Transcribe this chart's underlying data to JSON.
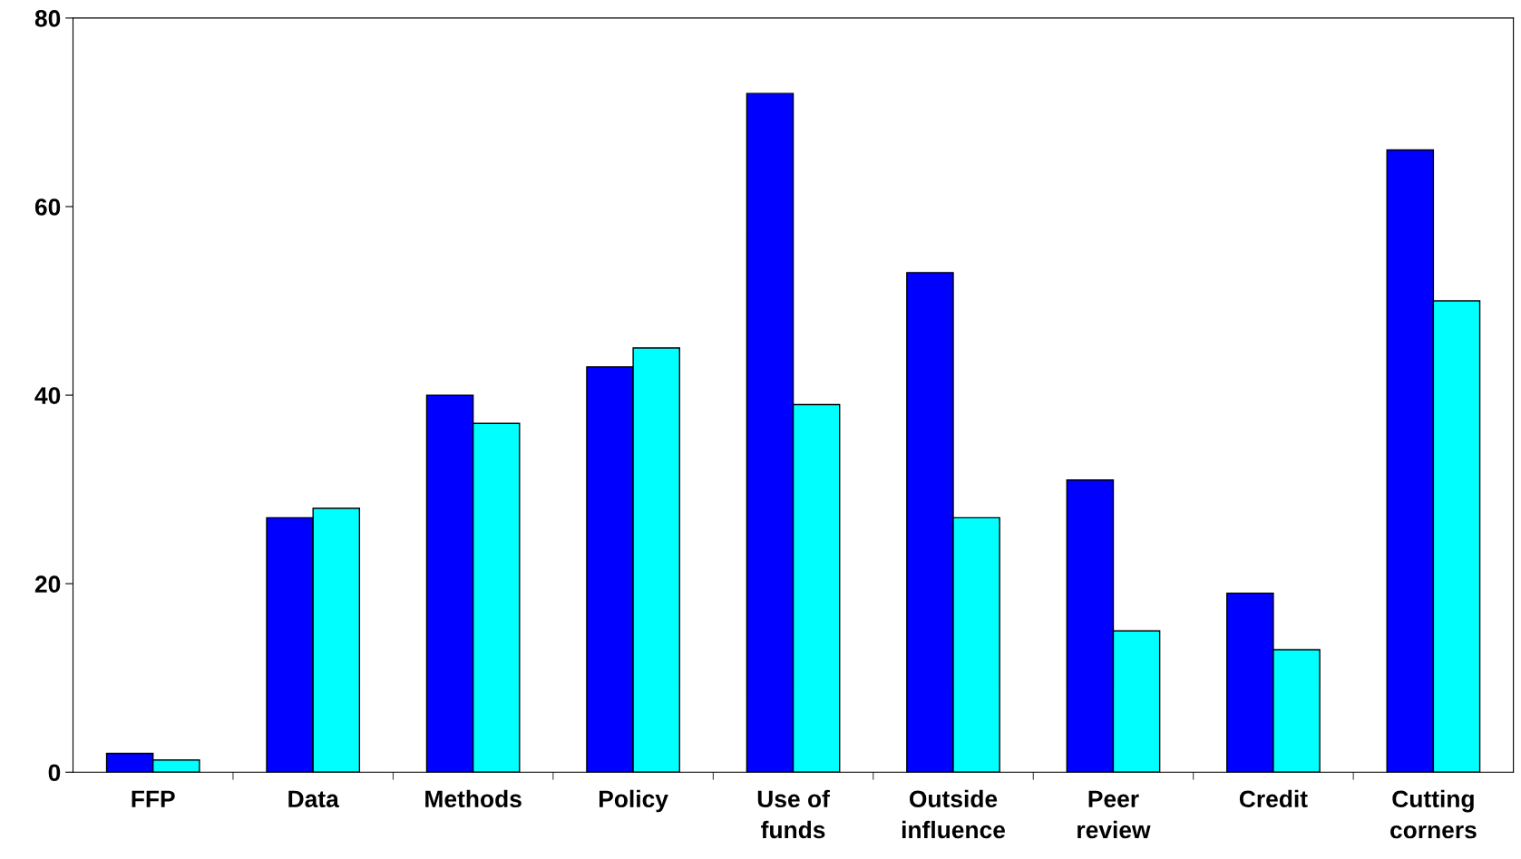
{
  "chart_data": {
    "type": "bar",
    "categories": [
      "FFP",
      "Data",
      "Methods",
      "Policy",
      "Use of\nfunds",
      "Outside\ninfluence",
      "Peer\nreview",
      "Credit",
      "Cutting\ncorners"
    ],
    "series": [
      {
        "color": "#0000ff",
        "values": [
          2,
          27,
          40,
          43,
          72,
          53,
          31,
          19,
          66
        ]
      },
      {
        "color": "#00ffff",
        "values": [
          1.3,
          28,
          37,
          45,
          39,
          27,
          15,
          13,
          50
        ]
      }
    ],
    "ylim": [
      0,
      80
    ],
    "yticks": [
      0,
      20,
      40,
      60,
      80
    ],
    "grid": false
  }
}
